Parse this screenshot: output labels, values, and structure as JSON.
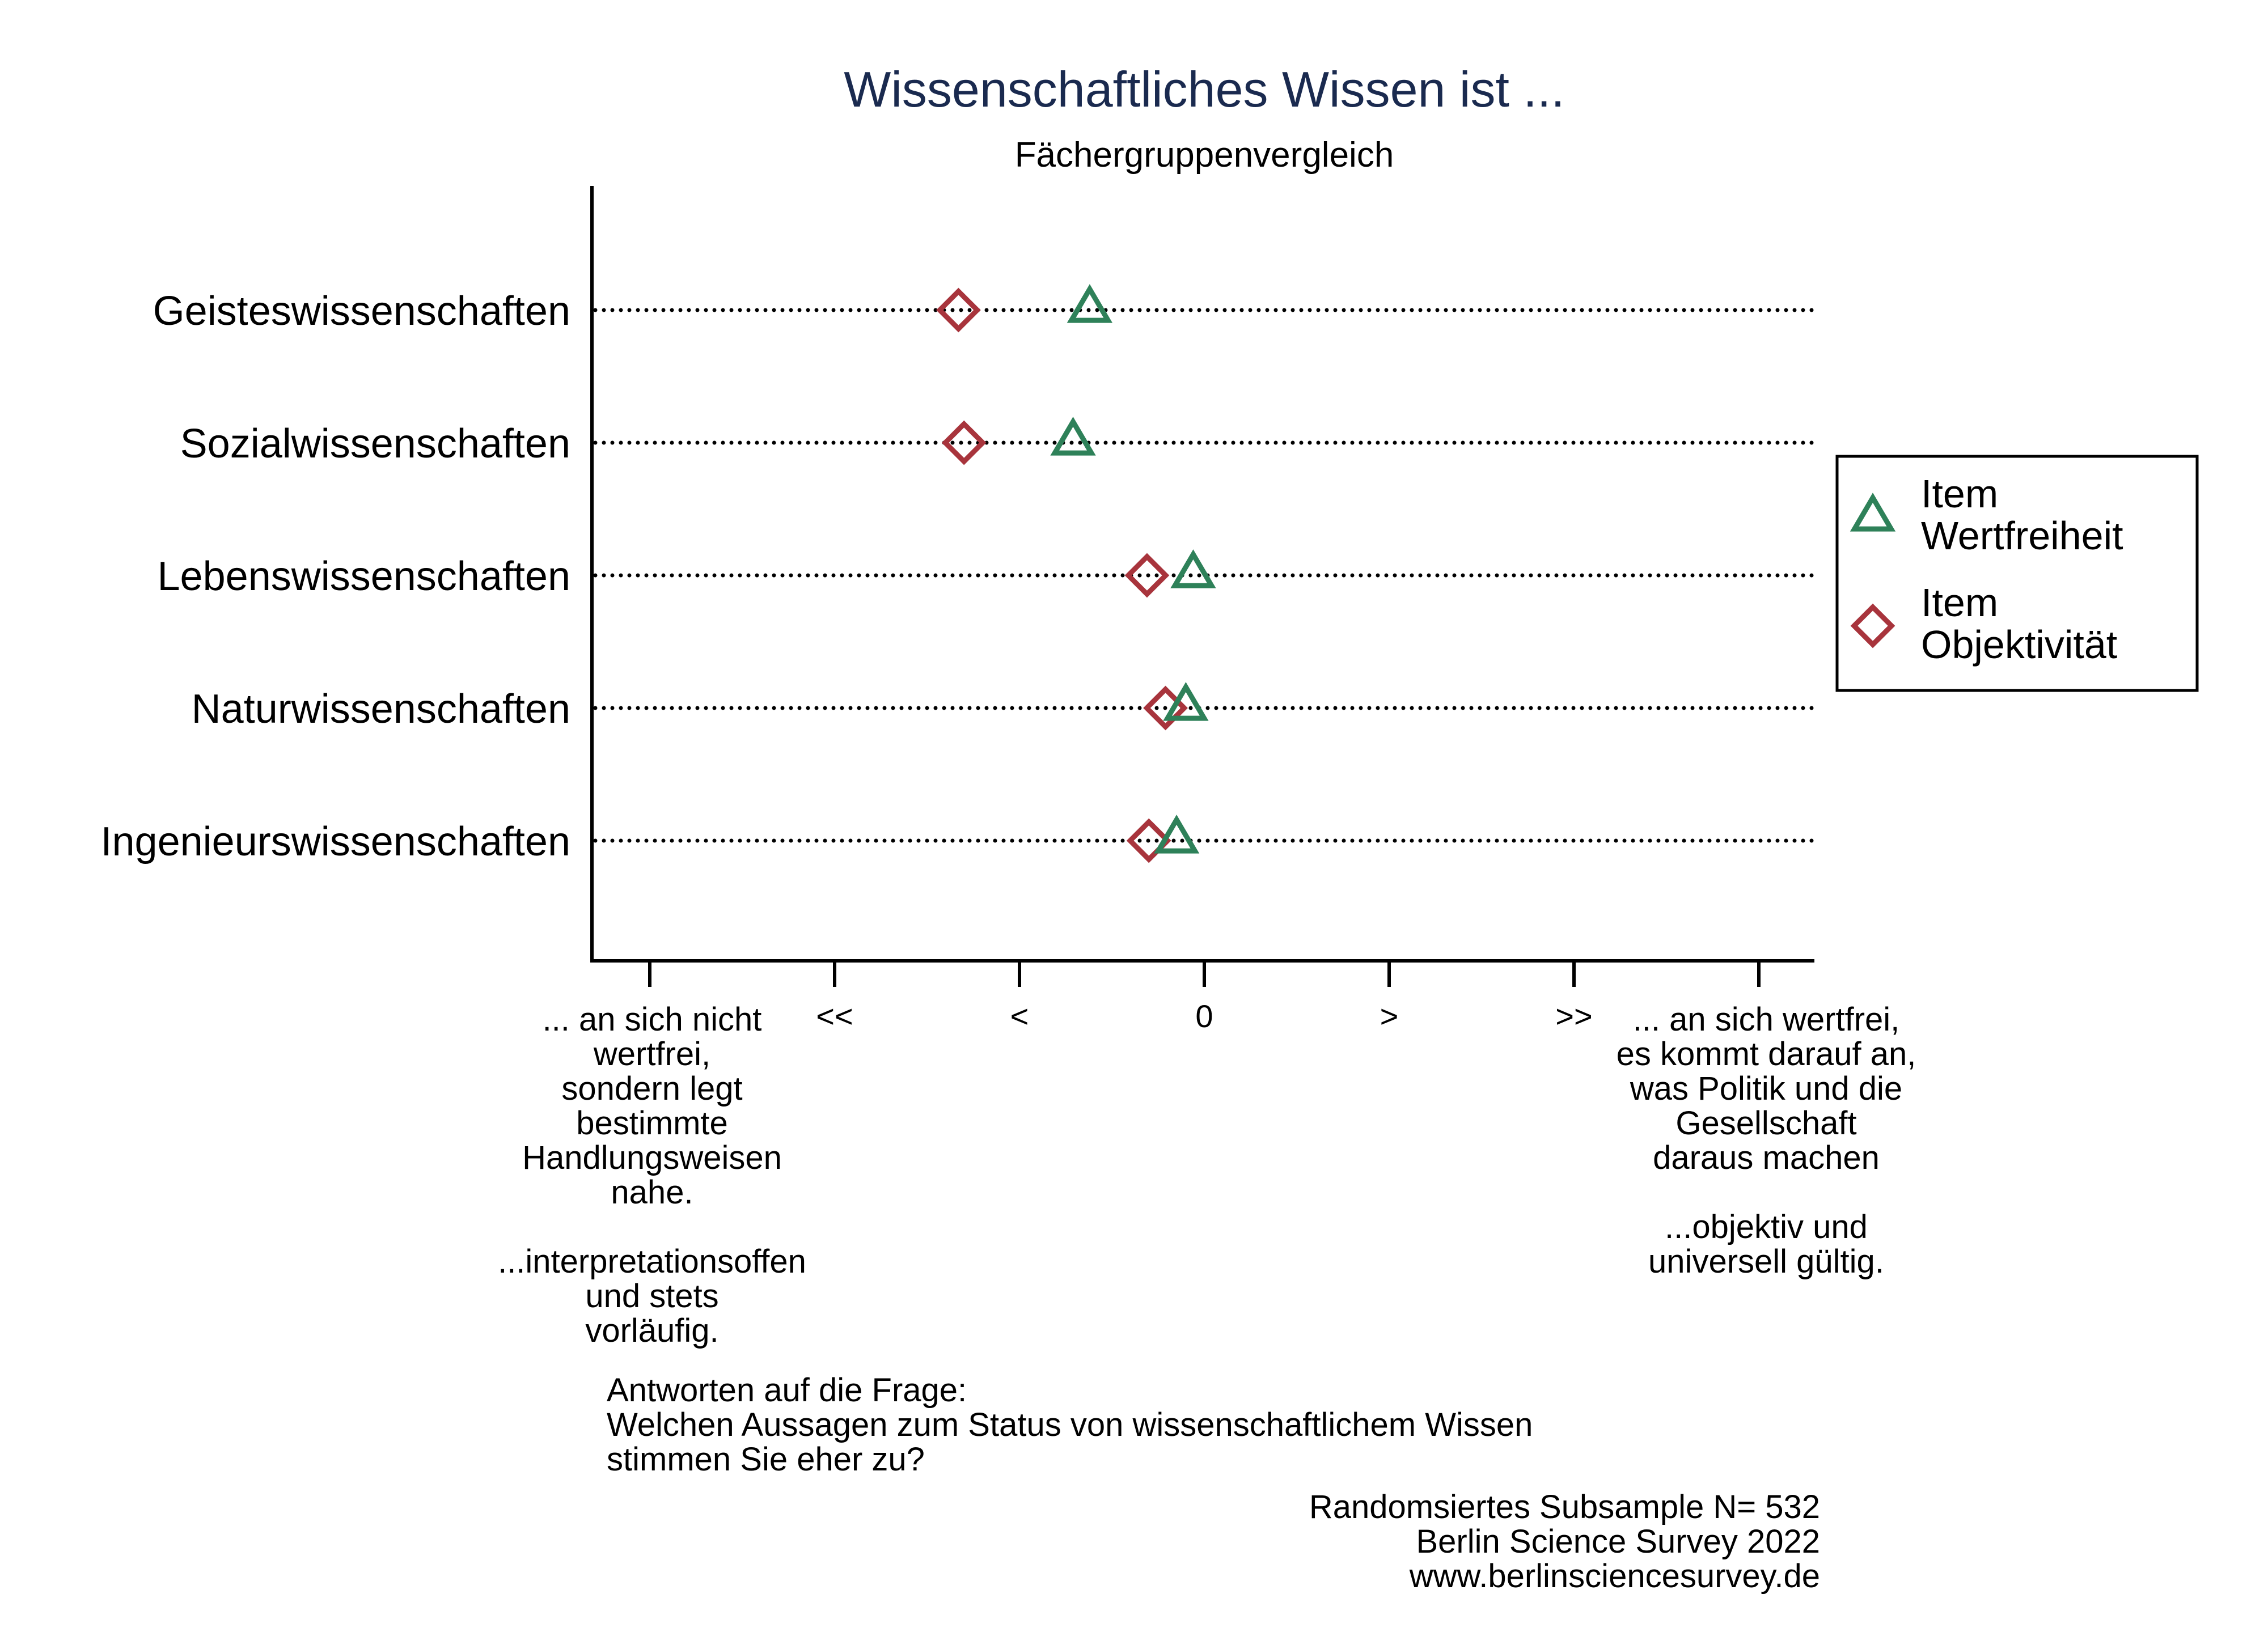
{
  "chart_data": {
    "type": "scatter",
    "title": "Wissenschaftliches Wissen ist ...",
    "subtitle": "Fächergruppenvergleich",
    "categories": [
      "Geisteswissenschaften",
      "Sozialwissenschaften",
      "Lebenswissenschaften",
      "Naturwissenschaften",
      "Ingenieurswissenschaften"
    ],
    "x_ticks": [
      -3,
      -2,
      -1,
      0,
      1,
      2,
      3
    ],
    "x_tick_labels": [
      "",
      "<<",
      "<",
      "0",
      ">",
      ">>",
      ""
    ],
    "xlim": [
      -3.3,
      3.3
    ],
    "series": [
      {
        "name": "Item\nWertfreiheit",
        "marker": "triangle",
        "color": "#2e8159",
        "values": [
          -0.62,
          -0.71,
          -0.06,
          -0.1,
          -0.15
        ]
      },
      {
        "name": "Item\nObjektivität",
        "marker": "diamond",
        "color": "#a8343c",
        "values": [
          -1.33,
          -1.3,
          -0.31,
          -0.21,
          -0.3
        ]
      }
    ],
    "left_description": "... an sich nicht\nwertfrei,\nsondern legt\nbestimmte\nHandlungsweisen\nnahe.\n\n...interpretationsoffen\nund stets\nvorläufig.",
    "right_description": "... an sich wertfrei,\nes kommt darauf an,\nwas Politik und die\nGesellschaft\ndaraus machen\n\n...objektiv und\nuniversell gültig.",
    "question": "Antworten auf die Frage:\nWelchen Aussagen zum Status von wissenschaftlichem Wissen\nstimmen Sie eher zu?",
    "source": "Randomsiertes Subsample N= 532\nBerlin Science Survey 2022\nwww.berlinsciencesurvey.de",
    "legend_position": "right",
    "grid": false,
    "colors": {
      "title": "#1a2a4f",
      "triangle": "#2e8159",
      "diamond": "#a8343c",
      "axis": "#000000"
    }
  }
}
